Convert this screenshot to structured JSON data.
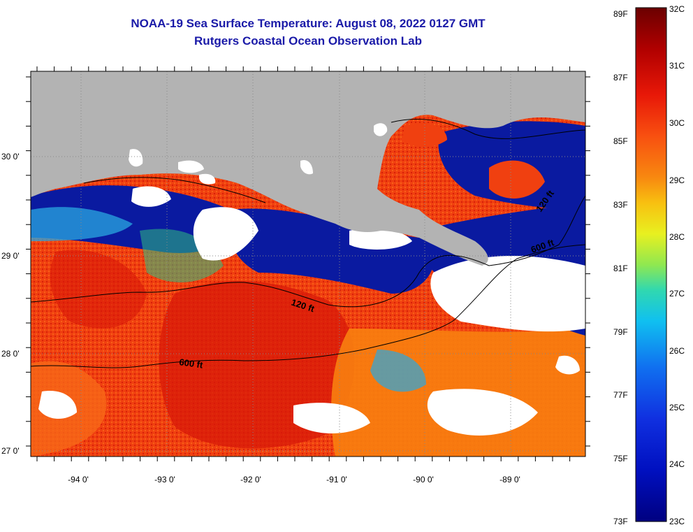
{
  "map": {
    "title_line1": "NOAA-19 Sea Surface Temperature:  August 08, 2022 0127 GMT",
    "title_line2": "Rutgers Coastal Ocean Observation Lab",
    "longitude_labels": [
      "-94 0'",
      "-93 0'",
      "-92 0'",
      "-91 0'",
      "-90 0'",
      "-89 0'"
    ],
    "latitude_labels": [
      "30 0'",
      "29 0'",
      "28 0'",
      "27 0'"
    ],
    "contour_labels": [
      "120 ft",
      "600 ft",
      "600 ft",
      "120 ft"
    ],
    "colors": {
      "land": "#b3b3b3",
      "cloud": "#ffffff",
      "sst_warm": "#f04010",
      "sst_hot": "#d81808",
      "sst_orange": "#f88010",
      "sst_cold": "#0a1aa0",
      "sst_cyan": "#2aa8e0",
      "title": "#1a1aa8"
    }
  },
  "colorbar": {
    "fahrenheit_labels": [
      "89F",
      "87F",
      "85F",
      "83F",
      "81F",
      "79F",
      "77F",
      "75F",
      "73F"
    ],
    "celsius_labels": [
      "32C",
      "31C",
      "30C",
      "29C",
      "28C",
      "27C",
      "26C",
      "25C",
      "24C",
      "23C"
    ],
    "gradient": [
      "#6b0000",
      "#b00000",
      "#e81808",
      "#f85010",
      "#f88810",
      "#f8c010",
      "#e8f020",
      "#90e850",
      "#30d8b0",
      "#10c0f0",
      "#1070f0",
      "#1030e0",
      "#0010c0",
      "#000080"
    ]
  }
}
